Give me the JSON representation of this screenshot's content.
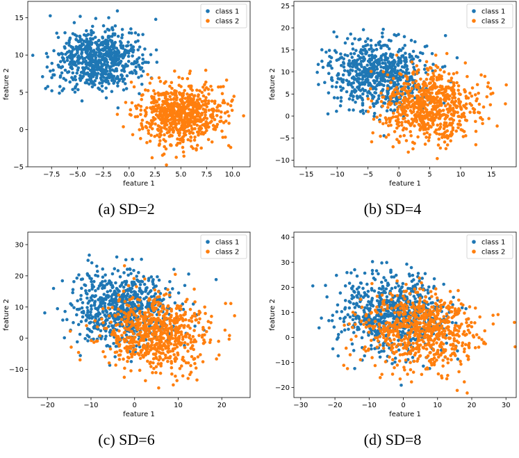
{
  "chart_data": [
    {
      "type": "scatter",
      "caption": "(a) SD=2",
      "xlabel": "feature 1",
      "ylabel": "feature 2",
      "xlim": [
        -9.8,
        11.7
      ],
      "ylim": [
        -5,
        17.2
      ],
      "xticks": [
        -7.5,
        -5.0,
        -2.5,
        0.0,
        2.5,
        5.0,
        7.5,
        10.0
      ],
      "xtick_labels": [
        "−7.5",
        "−5.0",
        "−2.5",
        "0.0",
        "2.5",
        "5.0",
        "7.5",
        "10.0"
      ],
      "yticks": [
        -5,
        0,
        5,
        10,
        15
      ],
      "ytick_labels": [
        "−5",
        "0",
        "5",
        "10",
        "15"
      ],
      "sd": 2,
      "legend_position": "top-right",
      "series": [
        {
          "name": "class 1",
          "color": "#1f77b4",
          "center": [
            -3,
            9.5
          ],
          "count": 700
        },
        {
          "name": "class 2",
          "color": "#ff7f0e",
          "center": [
            5,
            2
          ],
          "count": 700
        }
      ]
    },
    {
      "type": "scatter",
      "caption": "(b) SD=4",
      "xlabel": "feature 1",
      "ylabel": "feature 2",
      "xlim": [
        -17,
        19
      ],
      "ylim": [
        -11.5,
        26
      ],
      "xticks": [
        -15,
        -10,
        -5,
        0,
        5,
        10,
        15
      ],
      "xtick_labels": [
        "−15",
        "−10",
        "−5",
        "0",
        "5",
        "10",
        "15"
      ],
      "yticks": [
        -10,
        -5,
        0,
        5,
        10,
        15,
        20,
        25
      ],
      "ytick_labels": [
        "−10",
        "−5",
        "0",
        "5",
        "10",
        "15",
        "20",
        "25"
      ],
      "sd": 4,
      "legend_position": "top-right",
      "series": [
        {
          "name": "class 1",
          "color": "#1f77b4",
          "center": [
            -3,
            9.5
          ],
          "count": 700
        },
        {
          "name": "class 2",
          "color": "#ff7f0e",
          "center": [
            5,
            2
          ],
          "count": 700
        }
      ]
    },
    {
      "type": "scatter",
      "caption": "(c) SD=6",
      "xlabel": "feature 1",
      "ylabel": "feature 2",
      "xlim": [
        -24.5,
        26.5
      ],
      "ylim": [
        -19,
        34
      ],
      "xticks": [
        -20,
        -10,
        0,
        10,
        20
      ],
      "xtick_labels": [
        "−20",
        "−10",
        "0",
        "10",
        "20"
      ],
      "yticks": [
        -10,
        0,
        10,
        20,
        30
      ],
      "ytick_labels": [
        "−10",
        "0",
        "10",
        "20",
        "30"
      ],
      "sd": 6,
      "legend_position": "top-right",
      "series": [
        {
          "name": "class 1",
          "color": "#1f77b4",
          "center": [
            -3,
            9.5
          ],
          "count": 700
        },
        {
          "name": "class 2",
          "color": "#ff7f0e",
          "center": [
            5,
            2
          ],
          "count": 700
        }
      ]
    },
    {
      "type": "scatter",
      "caption": "(d) SD=8",
      "xlabel": "feature 1",
      "ylabel": "feature 2",
      "xlim": [
        -32,
        33
      ],
      "ylim": [
        -24,
        42
      ],
      "xticks": [
        -30,
        -20,
        -10,
        0,
        10,
        20,
        30
      ],
      "xtick_labels": [
        "−30",
        "−20",
        "−10",
        "0",
        "10",
        "20",
        "30"
      ],
      "yticks": [
        -20,
        -10,
        0,
        10,
        20,
        30,
        40
      ],
      "ytick_labels": [
        "−20",
        "−10",
        "0",
        "10",
        "20",
        "30",
        "40"
      ],
      "sd": 8,
      "legend_position": "top-right",
      "series": [
        {
          "name": "class 1",
          "color": "#1f77b4",
          "center": [
            -3,
            9.5
          ],
          "count": 700
        },
        {
          "name": "class 2",
          "color": "#ff7f0e",
          "center": [
            5,
            2
          ],
          "count": 700
        }
      ]
    }
  ]
}
